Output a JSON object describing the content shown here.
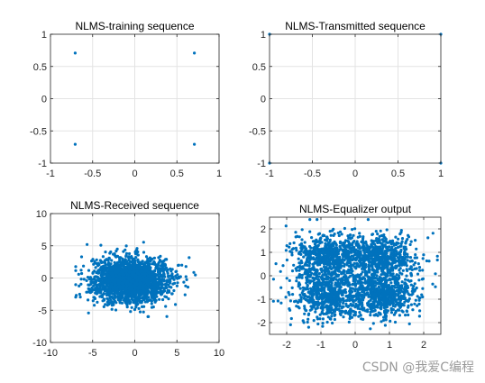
{
  "watermark": "CSDN @我爱C编程",
  "colors": {
    "marker": "#0072BD",
    "grid": "#e3e3e3",
    "axis": "#262626"
  },
  "chart_data": [
    {
      "type": "scatter",
      "title": "NLMS-training sequence",
      "xlim": [
        -1,
        1
      ],
      "ylim": [
        -1,
        1
      ],
      "xticks": [
        -1,
        -0.5,
        0,
        0.5,
        1
      ],
      "yticks": [
        -1,
        -0.5,
        0,
        0.5,
        1
      ],
      "xticklabels": [
        "-1",
        "-0.5",
        "0",
        "0.5",
        "1"
      ],
      "yticklabels": [
        "-1",
        "-0.5",
        "0",
        "0.5",
        "1"
      ],
      "grid": true,
      "points": [
        [
          -0.707,
          0.707
        ],
        [
          0.707,
          0.707
        ],
        [
          -0.707,
          -0.707
        ],
        [
          0.707,
          -0.707
        ]
      ]
    },
    {
      "type": "scatter",
      "title": "NLMS-Transmitted sequence",
      "xlim": [
        -1,
        1
      ],
      "ylim": [
        -1,
        1
      ],
      "xticks": [
        -1,
        -0.5,
        0,
        0.5,
        1
      ],
      "yticks": [
        -1,
        -0.5,
        0,
        0.5,
        1
      ],
      "xticklabels": [
        "-1",
        "-0.5",
        "0",
        "0.5",
        "1"
      ],
      "yticklabels": [
        "-1",
        "-0.5",
        "0",
        "0.5",
        "1"
      ],
      "grid": true,
      "points": [
        [
          -1,
          1
        ],
        [
          1,
          1
        ],
        [
          -1,
          -1
        ],
        [
          1,
          -1
        ]
      ]
    },
    {
      "type": "scatter",
      "title": "NLMS-Received sequence",
      "xlim": [
        -10,
        10
      ],
      "ylim": [
        -10,
        10
      ],
      "xticks": [
        -10,
        -5,
        0,
        5,
        10
      ],
      "yticks": [
        -10,
        -5,
        0,
        5,
        10
      ],
      "xticklabels": [
        "-10",
        "-5",
        "0",
        "5",
        "10"
      ],
      "yticklabels": [
        "-10",
        "-5",
        "0",
        "5",
        "10"
      ],
      "grid": true,
      "cloud": {
        "center": [
          -0.5,
          -0.3
        ],
        "spread": [
          2.2,
          1.7
        ],
        "range_x": [
          -7,
          7.5
        ],
        "range_y": [
          -6,
          7
        ],
        "count": 2200
      }
    },
    {
      "type": "scatter",
      "title": "NLMS-Equalizer output",
      "xlim": [
        -2.5,
        2.5
      ],
      "ylim": [
        -2.5,
        2.5
      ],
      "xticks": [
        -2,
        -1,
        0,
        1,
        2
      ],
      "yticks": [
        -2,
        -1,
        0,
        1,
        2
      ],
      "xticklabels": [
        "-2",
        "-1",
        "0",
        "1",
        "2"
      ],
      "yticklabels": [
        "-2",
        "-1",
        "0",
        "1",
        "2"
      ],
      "grid": true,
      "clusters": {
        "centers": [
          [
            -0.8,
            0.8
          ],
          [
            0.8,
            0.8
          ],
          [
            -0.8,
            -0.8
          ],
          [
            0.8,
            -0.8
          ]
        ],
        "spread": 0.5,
        "range": [
          -2.4,
          2.4
        ],
        "count_per_cluster": 650
      }
    }
  ]
}
